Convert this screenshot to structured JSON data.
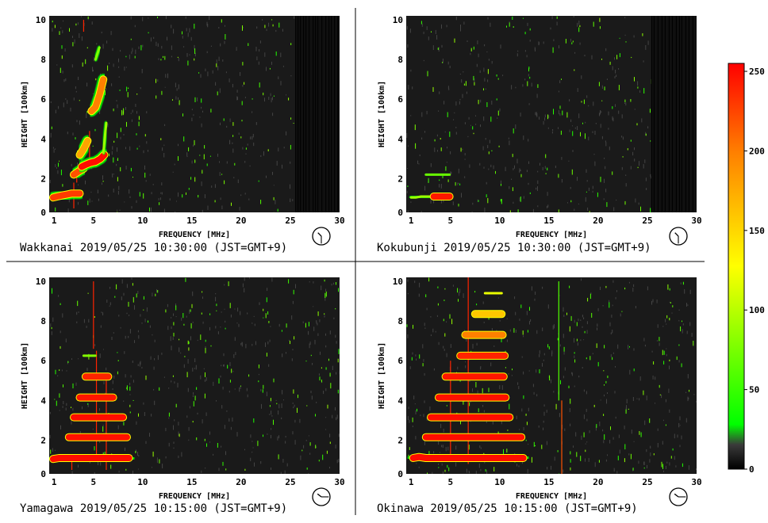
{
  "chart_data": [
    {
      "type": "heatmap",
      "station": "Wakkanai",
      "timestamp": "2019/05/25 10:30:00 (JST=GMT+9)",
      "xlabel": "FREQUENCY [MHz]",
      "ylabel": "HEIGHT [100km]",
      "xlim": [
        0.5,
        30
      ],
      "ylim": [
        0.3,
        10.2
      ],
      "xticks": [
        1,
        5,
        10,
        15,
        20,
        25,
        30
      ],
      "yticks": [
        0,
        2,
        4,
        6,
        8,
        10
      ],
      "clock": "10:30",
      "noise_band_start_mhz": 25.5,
      "traces": [
        {
          "x": [
            0.9,
            1.3,
            1.8,
            2.3,
            2.8,
            3.2,
            3.6
          ],
          "y": [
            1.05,
            1.1,
            1.15,
            1.2,
            1.25,
            1.25,
            1.25
          ],
          "intensity": 230
        },
        {
          "x": [
            3.0,
            3.3,
            3.6,
            4.0
          ],
          "y": [
            2.2,
            2.3,
            2.4,
            2.5
          ],
          "intensity": 220
        },
        {
          "x": [
            3.8,
            4.2,
            4.7,
            5.2,
            5.7,
            6.1
          ],
          "y": [
            2.6,
            2.7,
            2.8,
            2.85,
            3.0,
            3.2
          ],
          "intensity": 250
        },
        {
          "x": [
            3.6,
            4.0,
            4.4
          ],
          "y": [
            3.2,
            3.5,
            3.9
          ],
          "intensity": 180
        },
        {
          "x": [
            6.0,
            6.1,
            6.2,
            6.3
          ],
          "y": [
            3.3,
            3.8,
            4.3,
            4.8
          ],
          "intensity": 90
        },
        {
          "x": [
            4.8,
            5.2,
            5.6,
            6.0
          ],
          "y": [
            5.4,
            5.6,
            6.2,
            7.0
          ],
          "intensity": 200
        },
        {
          "x": [
            5.2,
            5.4,
            5.6
          ],
          "y": [
            8.0,
            8.3,
            8.6
          ],
          "intensity": 80
        }
      ],
      "spikes": [
        {
          "x": 3.0,
          "y0": 0.5,
          "y1": 1.8,
          "intensity": 240
        },
        {
          "x": 3.3,
          "y0": 1.8,
          "y1": 2.3,
          "intensity": 240
        },
        {
          "x": 3.8,
          "y0": 2.4,
          "y1": 3.6,
          "intensity": 240
        },
        {
          "x": 4.6,
          "y0": 2.6,
          "y1": 4.4,
          "intensity": 240
        },
        {
          "x": 4.0,
          "y0": 9.4,
          "y1": 10.0,
          "intensity": 240
        }
      ]
    },
    {
      "type": "heatmap",
      "station": "Kokubunji",
      "timestamp": "2019/05/25 10:30:00 (JST=GMT+9)",
      "xlabel": "FREQUENCY [MHz]",
      "ylabel": "HEIGHT [100km]",
      "xlim": [
        0.5,
        30
      ],
      "ylim": [
        0.3,
        10.2
      ],
      "xticks": [
        1,
        5,
        10,
        15,
        20,
        25,
        30
      ],
      "yticks": [
        0,
        2,
        4,
        6,
        8,
        10
      ],
      "clock": "10:30",
      "noise_band_start_mhz": 25.4,
      "traces": [
        {
          "x": [
            1.0,
            1.5,
            2.0,
            2.5,
            3.0
          ],
          "y": [
            1.05,
            1.05,
            1.1,
            1.1,
            1.1
          ],
          "intensity": 90
        },
        {
          "x": [
            3.3,
            3.7,
            4.1,
            4.5,
            4.9
          ],
          "y": [
            1.1,
            1.1,
            1.1,
            1.1,
            1.1
          ],
          "intensity": 245
        },
        {
          "x": [
            2.5,
            3.0,
            3.5,
            4.0,
            4.5,
            4.9
          ],
          "y": [
            2.2,
            2.2,
            2.2,
            2.2,
            2.2,
            2.2
          ],
          "intensity": 70
        }
      ],
      "spikes": []
    },
    {
      "type": "heatmap",
      "station": "Yamagawa",
      "timestamp": "2019/05/25 10:15:00 (JST=GMT+9)",
      "xlabel": "FREQUENCY [MHz]",
      "ylabel": "HEIGHT [100km]",
      "xlim": [
        0.5,
        30
      ],
      "ylim": [
        0.3,
        10.2
      ],
      "xticks": [
        1,
        5,
        10,
        15,
        20,
        25,
        30
      ],
      "yticks": [
        0,
        2,
        4,
        6,
        8,
        10
      ],
      "clock": "10:15",
      "noise_band_start_mhz": null,
      "traces": [
        {
          "x": [
            0.9,
            1.5,
            2.2,
            3.0,
            4.0,
            5.0,
            6.0,
            7.0,
            8.0,
            8.6
          ],
          "y": [
            1.05,
            1.1,
            1.1,
            1.1,
            1.1,
            1.1,
            1.1,
            1.1,
            1.1,
            1.1
          ],
          "intensity": 250
        },
        {
          "x": [
            2.5,
            3.5,
            4.5,
            5.5,
            6.5,
            7.5,
            8.4
          ],
          "y": [
            2.15,
            2.15,
            2.15,
            2.15,
            2.15,
            2.15,
            2.15
          ],
          "intensity": 248
        },
        {
          "x": [
            3.0,
            4.0,
            5.0,
            6.0,
            7.0,
            8.0
          ],
          "y": [
            3.15,
            3.15,
            3.15,
            3.15,
            3.15,
            3.15
          ],
          "intensity": 250
        },
        {
          "x": [
            3.6,
            4.5,
            5.4,
            6.2,
            7.0
          ],
          "y": [
            4.15,
            4.15,
            4.15,
            4.15,
            4.15
          ],
          "intensity": 246
        },
        {
          "x": [
            4.2,
            5.0,
            5.8,
            6.5
          ],
          "y": [
            5.2,
            5.2,
            5.2,
            5.2
          ],
          "intensity": 240
        },
        {
          "x": [
            4.0,
            4.6,
            5.2
          ],
          "y": [
            6.25,
            6.25,
            6.25
          ],
          "intensity": 80
        }
      ],
      "spikes": [
        {
          "x": 5.0,
          "y0": 6.6,
          "y1": 10.0,
          "intensity": 240
        },
        {
          "x": 5.3,
          "y0": 1.0,
          "y1": 6.5,
          "intensity": 240
        },
        {
          "x": 6.3,
          "y0": 0.5,
          "y1": 5.0,
          "intensity": 240
        },
        {
          "x": 2.8,
          "y0": 0.5,
          "y1": 1.0,
          "intensity": 240
        }
      ]
    },
    {
      "type": "heatmap",
      "station": "Okinawa",
      "timestamp": "2019/05/25 10:15:00 (JST=GMT+9)",
      "xlabel": "FREQUENCY [MHz]",
      "ylabel": "HEIGHT [100km]",
      "xlim": [
        0.5,
        30
      ],
      "ylim": [
        0.3,
        10.2
      ],
      "xticks": [
        1,
        5,
        10,
        15,
        20,
        25,
        30
      ],
      "yticks": [
        0,
        2,
        4,
        6,
        8,
        10
      ],
      "clock": "10:15",
      "noise_band_start_mhz": null,
      "traces": [
        {
          "x": [
            1.2,
            1.8,
            2.5,
            3.5,
            4.5,
            5.5,
            6.5,
            7.5,
            8.5,
            9.5,
            10.5,
            11.5,
            12.4
          ],
          "y": [
            1.1,
            1.15,
            1.1,
            1.1,
            1.1,
            1.1,
            1.1,
            1.1,
            1.1,
            1.1,
            1.1,
            1.1,
            1.1
          ],
          "intensity": 250
        },
        {
          "x": [
            2.5,
            3.5,
            4.5,
            5.5,
            6.5,
            7.5,
            8.5,
            9.5,
            10.5,
            11.5,
            12.2
          ],
          "y": [
            2.15,
            2.15,
            2.15,
            2.15,
            2.15,
            2.15,
            2.15,
            2.15,
            2.15,
            2.15,
            2.15
          ],
          "intensity": 250
        },
        {
          "x": [
            3.0,
            4.0,
            5.0,
            6.0,
            7.0,
            8.0,
            9.0,
            10.0,
            11.0
          ],
          "y": [
            3.15,
            3.15,
            3.15,
            3.15,
            3.15,
            3.15,
            3.15,
            3.15,
            3.15
          ],
          "intensity": 250
        },
        {
          "x": [
            3.8,
            4.8,
            5.8,
            6.8,
            7.8,
            8.8,
            9.8,
            10.6
          ],
          "y": [
            4.15,
            4.15,
            4.15,
            4.15,
            4.15,
            4.15,
            4.15,
            4.15
          ],
          "intensity": 248
        },
        {
          "x": [
            4.5,
            5.5,
            6.5,
            7.5,
            8.5,
            9.5,
            10.4
          ],
          "y": [
            5.2,
            5.2,
            5.2,
            5.2,
            5.2,
            5.2,
            5.2
          ],
          "intensity": 246
        },
        {
          "x": [
            6.0,
            7.0,
            8.0,
            9.0,
            10.0,
            10.5
          ],
          "y": [
            6.25,
            6.25,
            6.25,
            6.25,
            6.25,
            6.25
          ],
          "intensity": 240
        },
        {
          "x": [
            6.5,
            7.5,
            8.5,
            9.5,
            10.3
          ],
          "y": [
            7.3,
            7.3,
            7.3,
            7.3,
            7.3
          ],
          "intensity": 200
        },
        {
          "x": [
            7.5,
            8.5,
            9.5,
            10.2
          ],
          "y": [
            8.35,
            8.35,
            8.35,
            8.35
          ],
          "intensity": 160
        },
        {
          "x": [
            8.5,
            9.5,
            10.2
          ],
          "y": [
            9.4,
            9.4,
            9.4
          ],
          "intensity": 120
        }
      ],
      "spikes": [
        {
          "x": 6.8,
          "y0": 0.8,
          "y1": 10.2,
          "intensity": 240
        },
        {
          "x": 5.0,
          "y0": 1.0,
          "y1": 6.0,
          "intensity": 240
        },
        {
          "x": 16.3,
          "y0": 0.3,
          "y1": 4.0,
          "intensity": 220
        },
        {
          "x": 16.0,
          "y0": 4.0,
          "y1": 10.0,
          "intensity": 60
        }
      ]
    }
  ],
  "colorbar": {
    "min": 0,
    "max": 255,
    "ticks": [
      0,
      50,
      100,
      150,
      200,
      250
    ],
    "colors": {
      "0": "#000000",
      "20": "#3a3a3a",
      "30": "#00ff00",
      "128": "#ffff00",
      "200": "#ff8000",
      "255": "#ff0000"
    }
  },
  "colors": {
    "background": "#ffffff",
    "plot_bg": "#1a1a1a",
    "text": "#000000",
    "divider": "#000000"
  }
}
